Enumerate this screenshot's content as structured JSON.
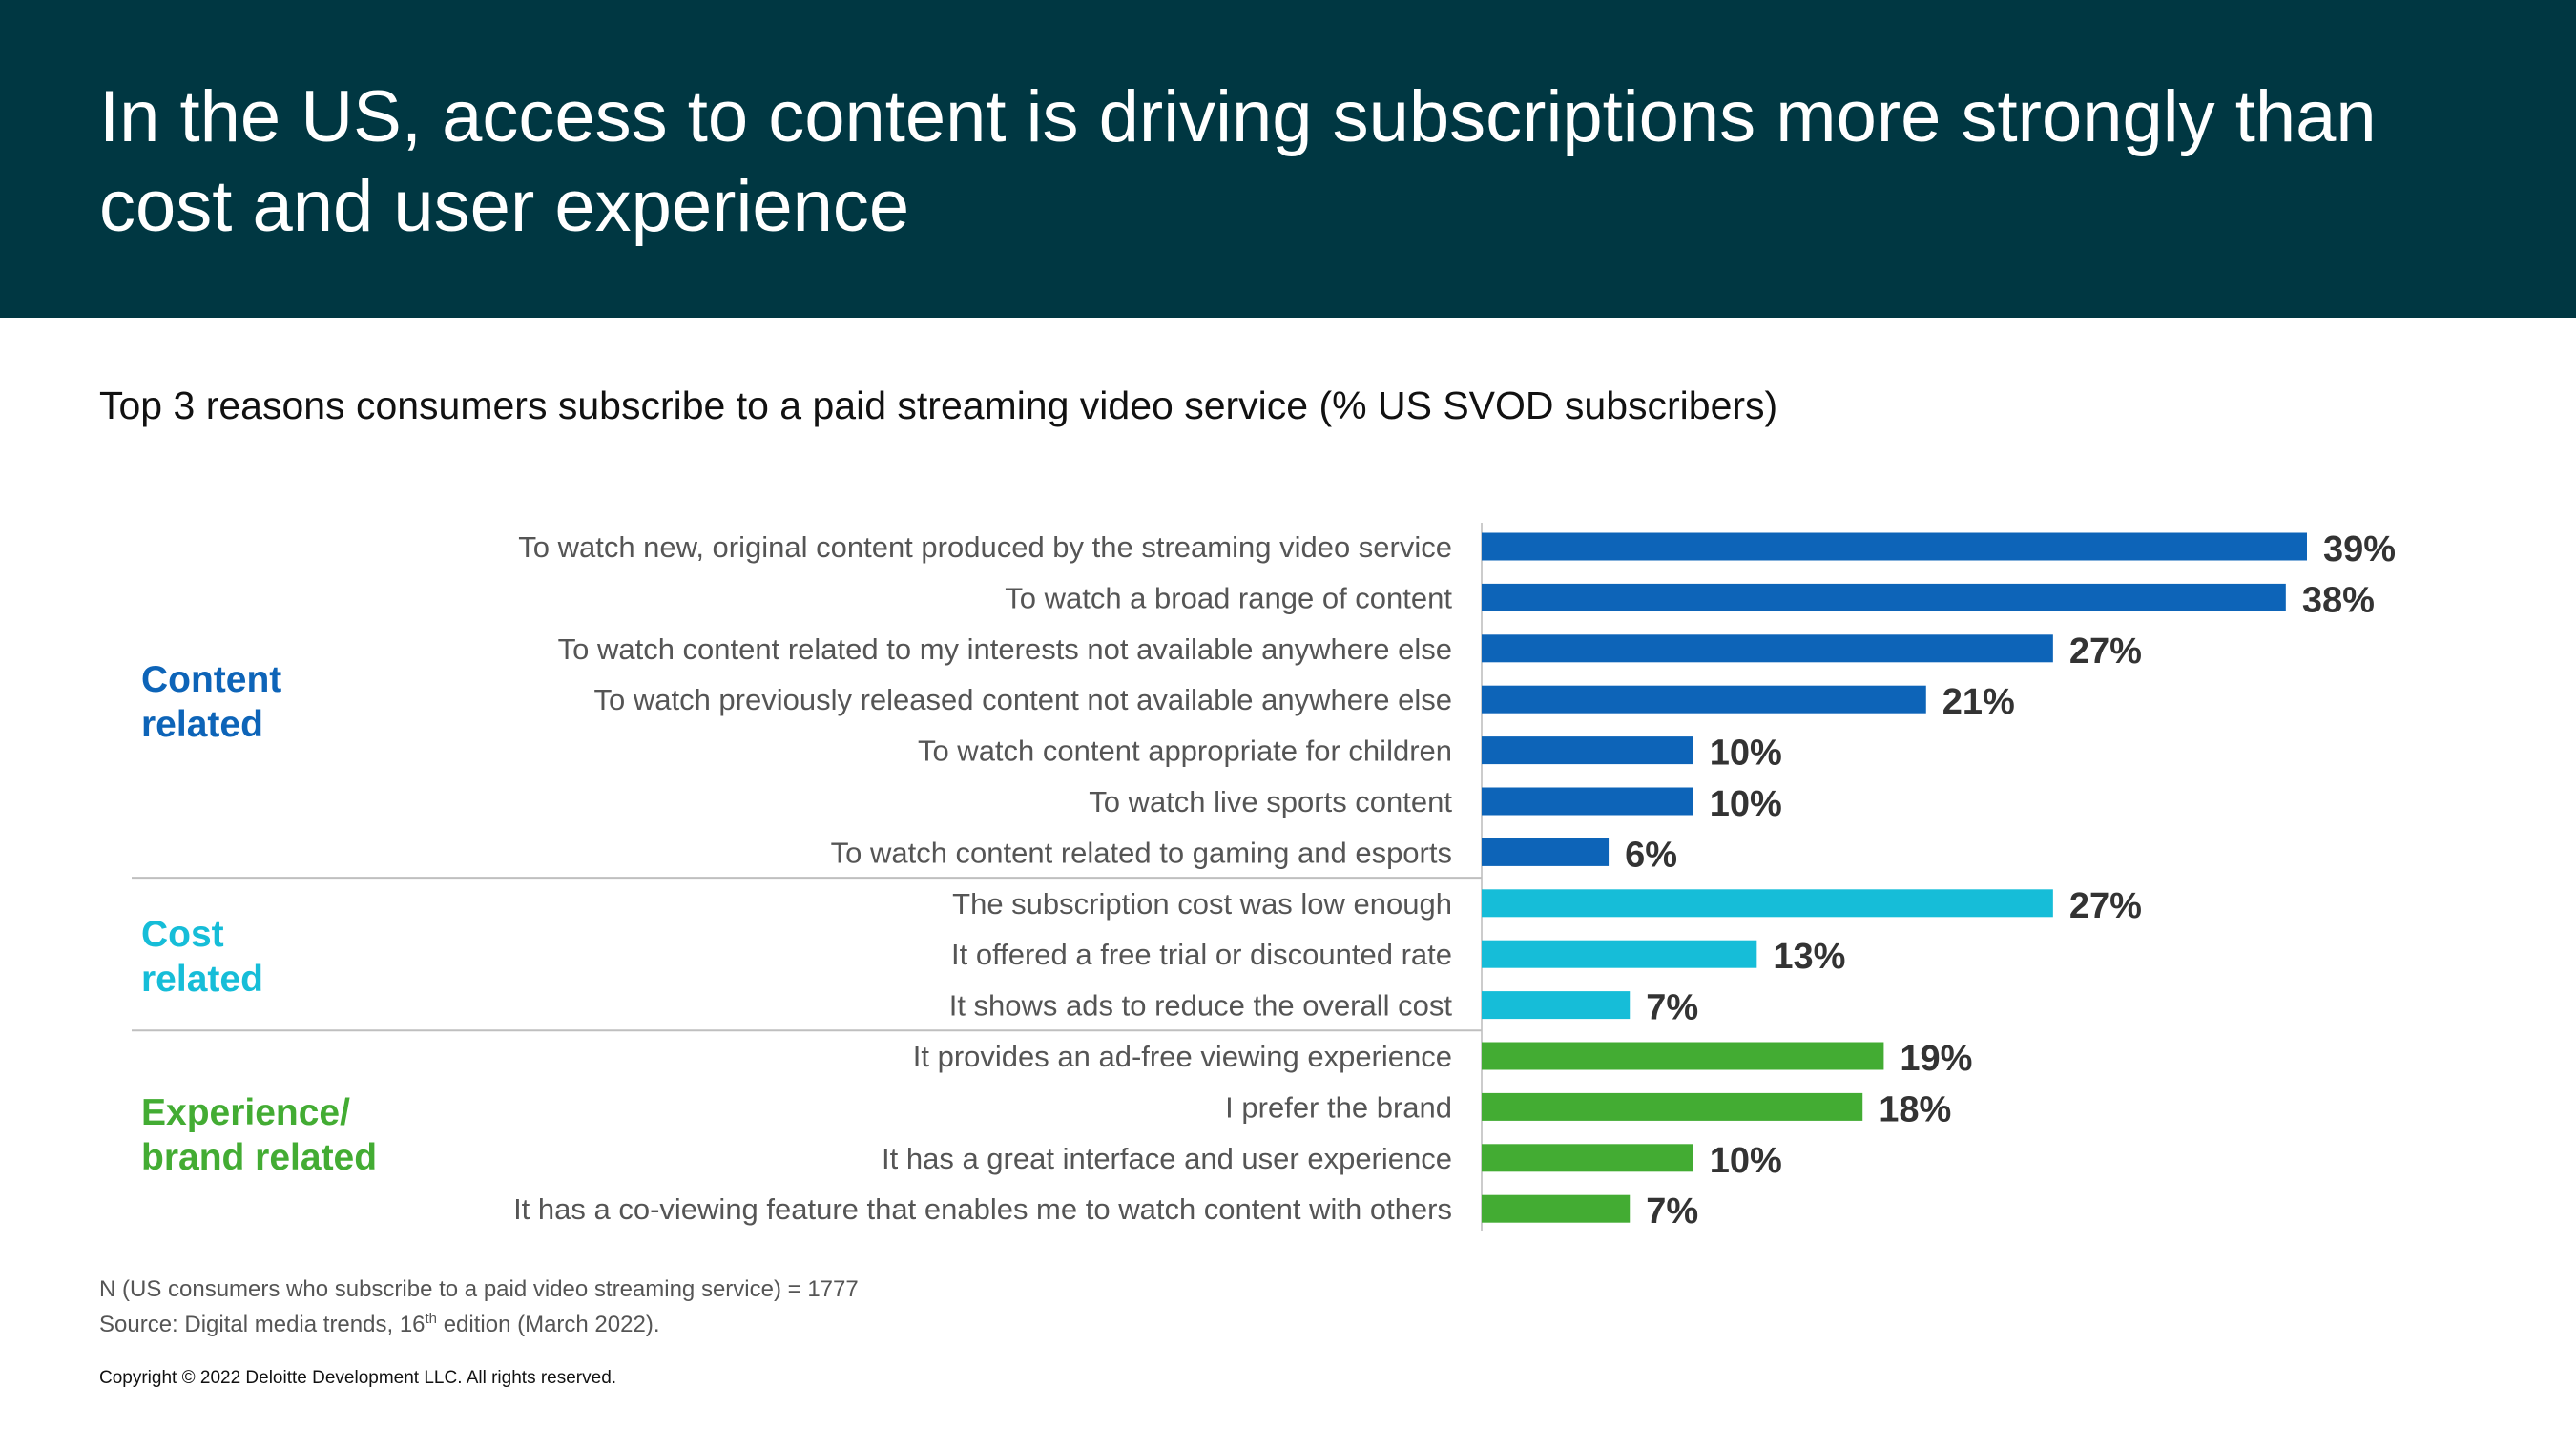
{
  "title": "In the US, access to content is driving subscriptions more strongly than cost and user experience",
  "subtitle": "Top 3 reasons consumers subscribe to a paid streaming video service (% US SVOD subscribers)",
  "chart_data": {
    "type": "bar",
    "orientation": "horizontal",
    "title": "Top 3 reasons consumers subscribe to a paid streaming video service (% US SVOD subscribers)",
    "xlabel": "",
    "ylabel": "",
    "xlim": [
      0,
      45
    ],
    "unit": "%",
    "groups": [
      {
        "name": "Content related",
        "color": "#0D64B8",
        "categories": [
          "To watch new, original content produced by the streaming video service",
          "To watch a broad range of content",
          "To watch content related to my interests not available anywhere else",
          "To watch previously released content not available anywhere else",
          "To watch content appropriate for children",
          "To watch live sports content",
          "To watch content related to gaming and esports"
        ],
        "values": [
          39,
          38,
          27,
          21,
          10,
          10,
          6
        ]
      },
      {
        "name": "Cost related",
        "color": "#16BDD8",
        "categories": [
          "The subscription cost was low enough",
          "It offered a free trial or discounted rate",
          "It shows ads to reduce the overall cost"
        ],
        "values": [
          27,
          13,
          7
        ]
      },
      {
        "name": "Experience/ brand related",
        "color": "#43AC33",
        "categories": [
          "It provides an ad-free viewing experience",
          "I prefer the brand",
          "It has a great interface and user experience",
          "It has a co-viewing feature that enables me to watch content with others"
        ],
        "values": [
          19,
          18,
          10,
          7
        ]
      }
    ]
  },
  "footnote": {
    "sample": "N (US consumers who subscribe to a paid video streaming service) = 1777",
    "source_prefix": "Source: Digital media trends, 16",
    "source_sup": "th",
    "source_suffix": " edition (March 2022)."
  },
  "copyright": "Copyright © 2022 Deloitte Development LLC. All rights reserved."
}
